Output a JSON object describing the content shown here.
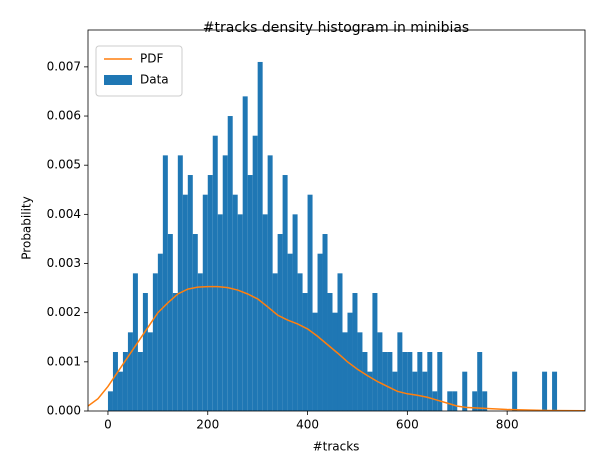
{
  "chart_data": {
    "type": "histogram",
    "title": "#tracks density histogram in minibias",
    "x_label": "#tracks",
    "y_label": "Probability",
    "xlim": [
      -40,
      956
    ],
    "ylim": [
      0,
      0.00775
    ],
    "xticks": [
      0,
      200,
      400,
      600,
      800
    ],
    "yticks": [
      {
        "value": 0,
        "label": "0.000"
      },
      {
        "value": 0.001,
        "label": "0.001"
      },
      {
        "value": 0.002,
        "label": "0.002"
      },
      {
        "value": 0.003,
        "label": "0.003"
      },
      {
        "value": 0.004,
        "label": "0.004"
      },
      {
        "value": 0.005,
        "label": "0.005"
      },
      {
        "value": 0.006,
        "label": "0.006"
      },
      {
        "value": 0.007,
        "label": "0.007"
      }
    ],
    "legend": "upper left",
    "series": [
      {
        "name": "PDF",
        "type": "line",
        "color": "#ff7f0e",
        "x": [
          -40,
          -20,
          0,
          20,
          40,
          60,
          80,
          100,
          120,
          140,
          160,
          180,
          200,
          220,
          240,
          260,
          280,
          300,
          320,
          340,
          360,
          380,
          400,
          420,
          440,
          460,
          480,
          500,
          520,
          540,
          560,
          580,
          600,
          620,
          640,
          660,
          680,
          700,
          720,
          740,
          760,
          780,
          800,
          840,
          880,
          956
        ],
        "values": [
          0.0001,
          0.00025,
          0.0005,
          0.0008,
          0.0011,
          0.0014,
          0.0017,
          0.002,
          0.0022,
          0.00238,
          0.00248,
          0.00252,
          0.00253,
          0.00253,
          0.00251,
          0.00246,
          0.00238,
          0.00228,
          0.00212,
          0.00195,
          0.00185,
          0.00177,
          0.00167,
          0.00152,
          0.00135,
          0.00118,
          0.001,
          0.00085,
          0.00072,
          0.0006,
          0.0005,
          0.0004,
          0.00035,
          0.00032,
          0.00028,
          0.00022,
          0.00016,
          0.0001,
          7e-05,
          6e-05,
          5e-05,
          4e-05,
          3e-05,
          2e-05,
          1e-05,
          5e-06
        ]
      },
      {
        "name": "Data",
        "type": "histogram",
        "color": "#1f77b4",
        "bins": [
          0,
          10,
          20,
          30,
          40,
          50,
          60,
          70,
          80,
          90,
          100,
          110,
          120,
          130,
          140,
          150,
          160,
          170,
          180,
          190,
          200,
          210,
          220,
          230,
          240,
          250,
          260,
          270,
          280,
          290,
          300,
          310,
          320,
          330,
          340,
          350,
          360,
          370,
          380,
          390,
          400,
          410,
          420,
          430,
          440,
          450,
          460,
          470,
          480,
          490,
          500,
          510,
          520,
          530,
          540,
          550,
          560,
          570,
          580,
          590,
          600,
          610,
          620,
          630,
          640,
          650,
          660,
          670,
          680,
          690,
          700,
          710,
          720,
          730,
          740,
          750,
          760,
          770,
          780,
          790,
          800,
          810,
          820,
          830,
          840,
          850,
          860,
          870,
          880,
          890,
          900,
          910,
          920
        ],
        "values": [
          0.0004,
          0.0012,
          0.0008,
          0.0012,
          0.0016,
          0.0028,
          0.0012,
          0.0024,
          0.0016,
          0.0028,
          0.0032,
          0.0052,
          0.0036,
          0.0024,
          0.0052,
          0.0044,
          0.0048,
          0.0036,
          0.0028,
          0.0044,
          0.0048,
          0.0056,
          0.004,
          0.0052,
          0.006,
          0.0044,
          0.004,
          0.0064,
          0.0048,
          0.0056,
          0.0071,
          0.004,
          0.0052,
          0.0028,
          0.0036,
          0.0048,
          0.0032,
          0.004,
          0.0028,
          0.0024,
          0.0044,
          0.002,
          0.0032,
          0.0036,
          0.0024,
          0.002,
          0.0028,
          0.0016,
          0.002,
          0.0024,
          0.0016,
          0.0012,
          0.0008,
          0.0024,
          0.0016,
          0.0012,
          0.0012,
          0.0008,
          0.0016,
          0.0012,
          0.0012,
          0.0008,
          0.0012,
          0.0008,
          0.0012,
          0.0004,
          0.0012,
          0,
          0.0004,
          0.0004,
          0,
          0.0008,
          0,
          0.0004,
          0.0012,
          0.0004,
          0,
          0,
          0,
          0,
          0,
          0.0008,
          0,
          0,
          0,
          0,
          0,
          0.0008,
          0,
          0.0008,
          0,
          0
        ]
      }
    ]
  }
}
